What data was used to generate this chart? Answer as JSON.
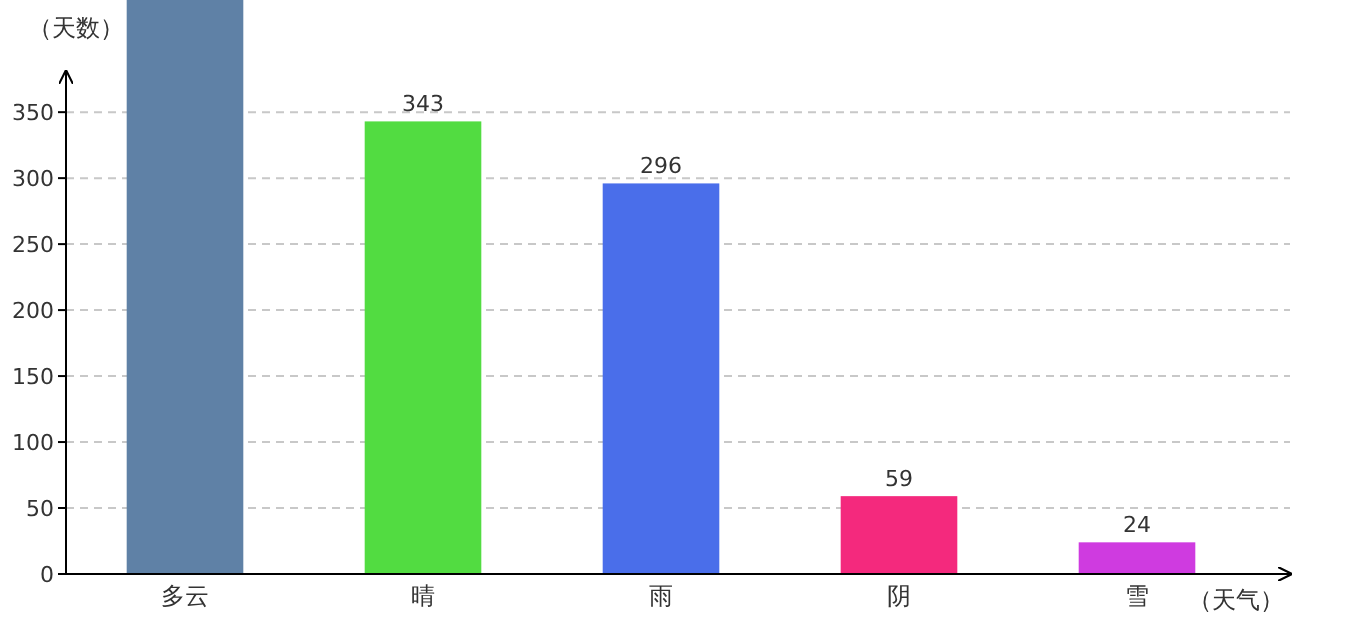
{
  "chart_data": {
    "type": "bar",
    "xlabel": "（天气）",
    "ylabel": "（天数）",
    "categories": [
      "多云",
      "晴",
      "雨",
      "阴",
      "雪"
    ],
    "values": [
      435,
      343,
      296,
      59,
      24
    ],
    "colors": [
      "#5f81a6",
      "#52dc41",
      "#4a6eea",
      "#f4297d",
      "#cf3be0"
    ],
    "value_labels": [
      null,
      "343",
      "296",
      "59",
      "24"
    ],
    "ylim": [
      0,
      435
    ],
    "yticks": [
      0,
      50,
      100,
      150,
      200,
      250,
      300,
      350
    ],
    "grid": "y"
  }
}
